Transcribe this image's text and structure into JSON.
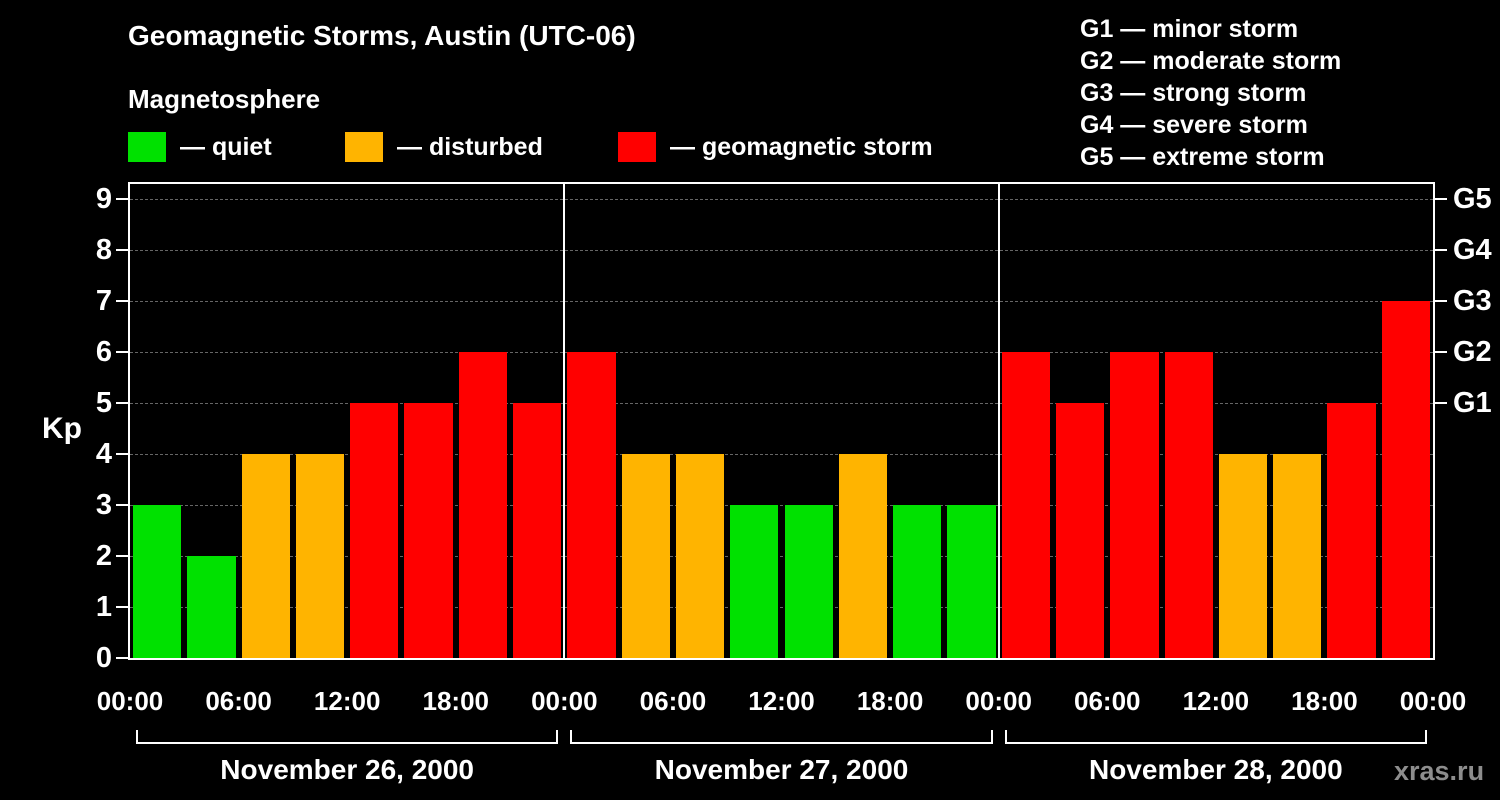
{
  "header": {
    "title": "Geomagnetic Storms, Austin (UTC-06)",
    "subtitle": "Magnetosphere"
  },
  "legend": [
    {
      "key": "quiet",
      "label": "— quiet"
    },
    {
      "key": "disturbed",
      "label": "— disturbed"
    },
    {
      "key": "storm",
      "label": "— geomagnetic storm"
    }
  ],
  "storm_scale": [
    "G1 — minor storm",
    "G2 — moderate storm",
    "G3 — strong storm",
    "G4 — severe storm",
    "G5 — extreme storm"
  ],
  "watermark": "xras.ru",
  "chart_data": {
    "type": "bar",
    "title": "Geomagnetic Storms, Austin (UTC-06)",
    "ylabel": "Kp",
    "ylim": [
      0,
      9.3
    ],
    "yticks": [
      0,
      1,
      2,
      3,
      4,
      5,
      6,
      7,
      8,
      9
    ],
    "right_axis": [
      {
        "label": "G1",
        "kp": 5
      },
      {
        "label": "G2",
        "kp": 6
      },
      {
        "label": "G3",
        "kp": 7
      },
      {
        "label": "G4",
        "kp": 8
      },
      {
        "label": "G5",
        "kp": 9
      }
    ],
    "hours_per_bar": 3,
    "x_tick_hours": [
      "00:00",
      "06:00",
      "12:00",
      "18:00"
    ],
    "x_axis_end_label": "00:00",
    "grid": "dashed-horizontal",
    "colors": {
      "quiet": "#00e100",
      "disturbed": "#ffb400",
      "storm": "#ff0000"
    },
    "thresholds": {
      "quiet_max_kp": 3,
      "disturbed_max_kp": 4
    },
    "days": [
      {
        "date": "November 26, 2000",
        "kp_values": [
          3,
          2,
          4,
          4,
          5,
          5,
          6,
          5
        ]
      },
      {
        "date": "November 27, 2000",
        "kp_values": [
          6,
          4,
          4,
          3,
          3,
          4,
          3,
          3
        ]
      },
      {
        "date": "November 28, 2000",
        "kp_values": [
          6,
          5,
          6,
          6,
          4,
          4,
          5,
          7
        ]
      }
    ]
  }
}
